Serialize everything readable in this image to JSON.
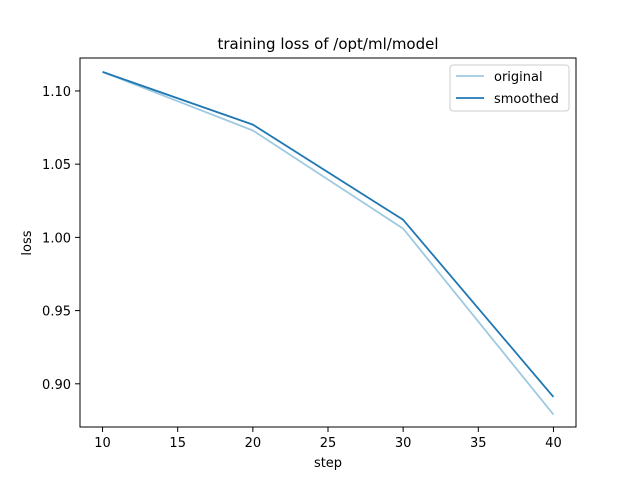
{
  "chart_data": {
    "type": "line",
    "title": "training loss of /opt/ml/model",
    "xlabel": "step",
    "ylabel": "loss",
    "xlim": [
      8.5,
      41.5
    ],
    "ylim": [
      0.8705,
      1.1225
    ],
    "xticks": [
      10,
      15,
      20,
      25,
      30,
      35,
      40
    ],
    "yticks": [
      0.9,
      0.95,
      1.0,
      1.05,
      1.1
    ],
    "grid": false,
    "legend_position": "top-right",
    "x": [
      10,
      20,
      30,
      40
    ],
    "series": [
      {
        "name": "original",
        "color": "#9ecae1",
        "values": [
          1.113,
          1.073,
          1.006,
          0.879
        ]
      },
      {
        "name": "smoothed",
        "color": "#1f77b4",
        "values": [
          1.113,
          1.077,
          1.012,
          0.891
        ]
      }
    ]
  }
}
